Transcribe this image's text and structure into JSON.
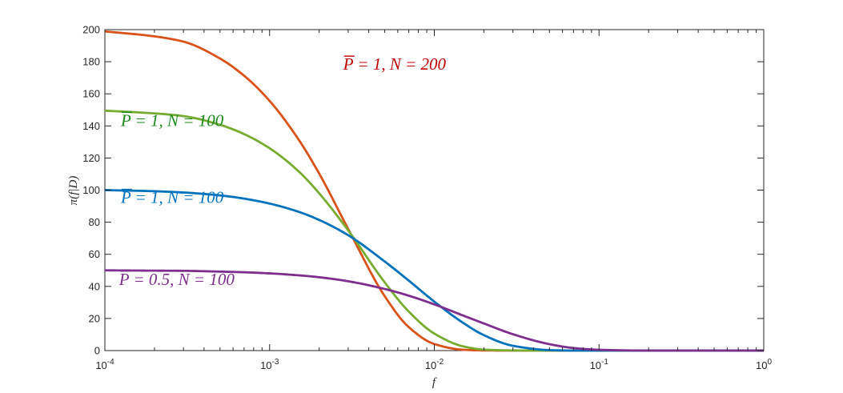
{
  "chart_data": {
    "type": "line",
    "title": "",
    "xlabel": "f",
    "ylabel": "π(f|D)",
    "xscale": "log",
    "xlim": [
      0.0001,
      1
    ],
    "ylim": [
      0,
      200
    ],
    "x_ticks": [
      {
        "value": 0.0001,
        "base": "10",
        "exp": "-4"
      },
      {
        "value": 0.001,
        "base": "10",
        "exp": "-3"
      },
      {
        "value": 0.01,
        "base": "10",
        "exp": "-2"
      },
      {
        "value": 0.1,
        "base": "10",
        "exp": "-1"
      },
      {
        "value": 1,
        "base": "10",
        "exp": "0"
      }
    ],
    "y_ticks": [
      0,
      20,
      40,
      60,
      80,
      100,
      120,
      140,
      160,
      180,
      200
    ],
    "grid": false,
    "x": [
      0.0001,
      0.0002,
      0.0003,
      0.0005,
      0.0007,
      0.001,
      0.0015,
      0.002,
      0.003,
      0.005,
      0.007,
      0.01,
      0.015,
      0.02,
      0.03,
      0.05,
      0.07,
      0.1,
      0.2,
      0.5,
      1
    ],
    "series": [
      {
        "color": "#D95319",
        "values": [
          198.9,
          195.8,
          192.5,
          182.0,
          171.3,
          155.6,
          131.5,
          110.3,
          75.8,
          33.9,
          14.6,
          4.1,
          0.5,
          0.1,
          0,
          0,
          0,
          0,
          0,
          0,
          0
        ]
      },
      {
        "color": "#77AC30",
        "values": [
          149.5,
          147.8,
          146.1,
          140.7,
          134.9,
          126.1,
          111.7,
          98.0,
          74.9,
          42.5,
          24.3,
          10.6,
          2.6,
          0.6,
          0.1,
          0,
          0,
          0,
          0,
          0,
          0
        ]
      },
      {
        "color": "#0072BD",
        "values": [
          100.0,
          99.3,
          98.5,
          96.7,
          94.7,
          91.6,
          86.5,
          81.4,
          71.9,
          55.5,
          43.6,
          30.5,
          17.2,
          9.6,
          3.0,
          0.3,
          0,
          0,
          0,
          0,
          0
        ]
      },
      {
        "color": "#7E2F8E",
        "values": [
          50.0,
          49.8,
          49.7,
          49.2,
          48.8,
          48.1,
          46.9,
          45.7,
          43.2,
          38.4,
          34.2,
          28.8,
          21.8,
          16.9,
          10.2,
          4.0,
          1.6,
          0.5,
          0,
          0,
          0
        ]
      }
    ],
    "annotations": [
      {
        "text_main": "P = 1, N = 200",
        "color": "#C00000",
        "x": 0.0028,
        "y": 175
      },
      {
        "text_main": "P = 1, N = 100",
        "color": "#1A8A1A",
        "x": 0.000125,
        "y": 140
      },
      {
        "text_main": "P = 1, N = 100",
        "color": "#0072BD",
        "x": 0.000125,
        "y": 92
      },
      {
        "text_main": "P = 0.5, N = 100",
        "color": "#7E2F8E",
        "x": 0.000122,
        "y": 41
      }
    ]
  }
}
